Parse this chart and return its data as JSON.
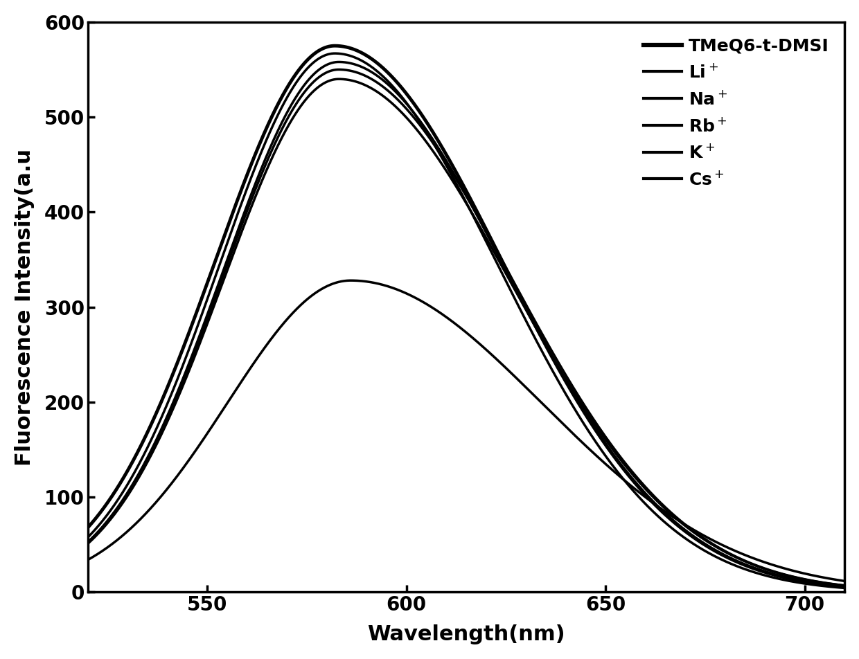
{
  "xlabel": "Wavelength(nm)",
  "ylabel": "Fluorescence Intensity(a.u",
  "xlim": [
    520,
    710
  ],
  "ylim": [
    0,
    600
  ],
  "xticks": [
    550,
    600,
    650,
    700
  ],
  "yticks": [
    0,
    100,
    200,
    300,
    400,
    500,
    600
  ],
  "series": [
    {
      "label": "TMeQ6-t-DMSI",
      "peak": 582,
      "amplitude": 575,
      "lw": 3.5,
      "color": "#000000",
      "sigma_l": 30,
      "sigma_r": 42
    },
    {
      "label": "Li+",
      "peak": 582,
      "amplitude": 567,
      "lw": 2.5,
      "color": "#000000",
      "sigma_l": 29,
      "sigma_r": 41
    },
    {
      "label": "Na+",
      "peak": 583,
      "amplitude": 558,
      "lw": 2.5,
      "color": "#000000",
      "sigma_l": 29,
      "sigma_r": 42
    },
    {
      "label": "Rb+",
      "peak": 583,
      "amplitude": 550,
      "lw": 2.5,
      "color": "#000000",
      "sigma_l": 29,
      "sigma_r": 43
    },
    {
      "label": "K+",
      "peak": 583,
      "amplitude": 540,
      "lw": 2.5,
      "color": "#000000",
      "sigma_l": 29,
      "sigma_r": 43
    },
    {
      "label": "Cs+",
      "peak": 586,
      "amplitude": 328,
      "lw": 2.5,
      "color": "#000000",
      "sigma_l": 31,
      "sigma_r": 48
    }
  ],
  "legend_labels_render": [
    "TMeQ6-t-DMSI",
    "Li$^+$",
    "Na$^+$",
    "Rb$^+$",
    "K$^+$",
    "Cs$^+$"
  ],
  "background_color": "#ffffff",
  "label_fontsize": 22,
  "tick_fontsize": 20,
  "legend_fontsize": 18
}
